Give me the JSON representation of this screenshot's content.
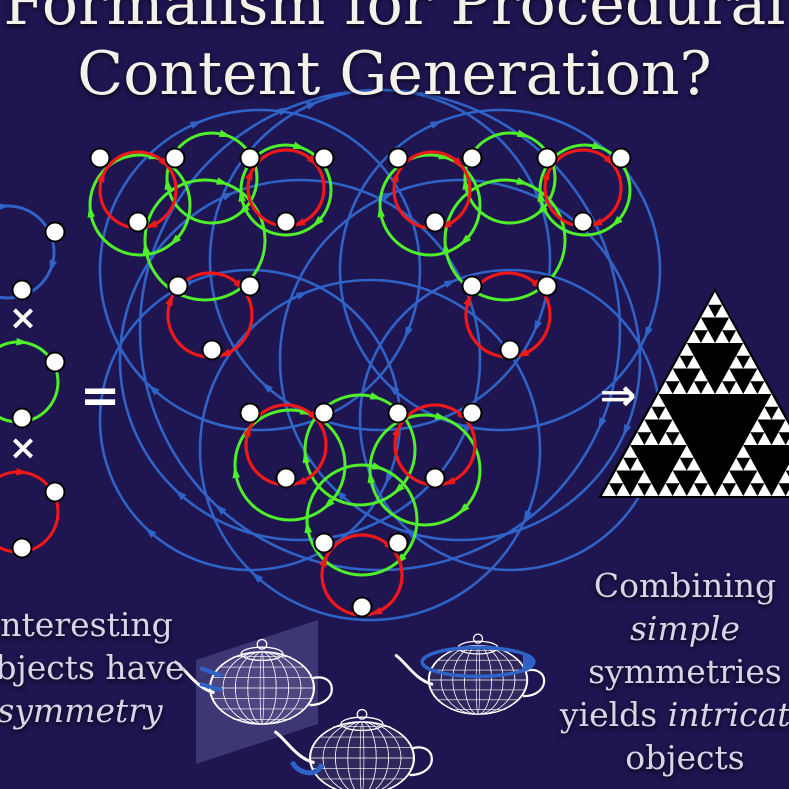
{
  "title": {
    "line1": "Formalism for Procedural",
    "line2": "Content Generation?"
  },
  "operators": {
    "times1": "×",
    "times2": "×",
    "equals": "=",
    "implies": "⇒"
  },
  "caption_left": {
    "line1": "Interesting",
    "line2": "objects have",
    "line3": "symmetry"
  },
  "caption_right": {
    "line1": "Combining",
    "line2": "simple",
    "line3": "symmetries",
    "line4_prefix": "yields",
    "line4_emph": "intricate",
    "line5": "objects"
  },
  "colors": {
    "background": "#1f1550",
    "blue_cycle": "#2f63c8",
    "green_cycle": "#4ff02a",
    "red_cycle": "#f01818",
    "node": "#ffffff",
    "fractal": "#ffffff"
  },
  "icons": [
    "teapot-wireframe-icon",
    "sierpinski-triangle-icon",
    "rotation-arrow-icon",
    "reflection-plane-icon"
  ]
}
